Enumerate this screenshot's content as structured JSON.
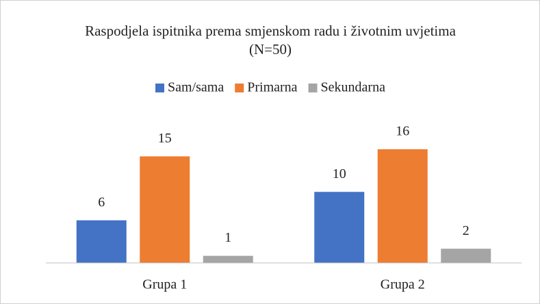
{
  "chart_data": {
    "type": "bar",
    "title": "Raspodjela ispitnika prema smjenskom radu i životnim uvjetima (N=50)",
    "categories": [
      "Grupa 1",
      "Grupa 2"
    ],
    "series": [
      {
        "name": "Sam/sama",
        "color": "#4472c4",
        "values": [
          6,
          10
        ]
      },
      {
        "name": "Primarna",
        "color": "#ed7d31",
        "values": [
          15,
          16
        ]
      },
      {
        "name": "Sekundarna",
        "color": "#a5a5a5",
        "values": [
          1,
          2
        ]
      }
    ],
    "legend": "top"
  }
}
